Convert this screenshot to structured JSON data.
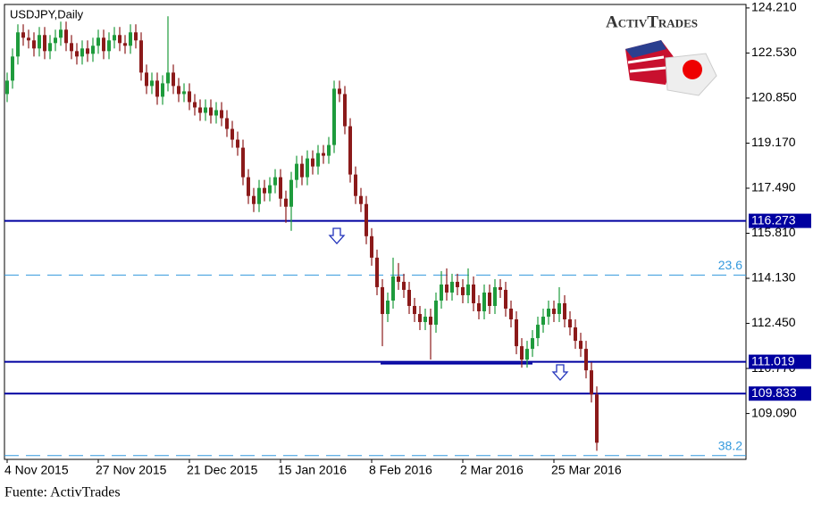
{
  "chart_data": {
    "type": "candlestick",
    "title": "USDJPY,Daily",
    "logo": "ActivTrades",
    "source": "Fuente: ActivTrades",
    "categories": [
      "4 Nov 2015",
      null,
      null,
      null,
      null,
      null,
      null,
      null,
      null,
      null,
      null,
      null,
      null,
      null,
      null,
      null,
      null,
      "27 Nov 2015",
      null,
      null,
      null,
      null,
      null,
      null,
      null,
      null,
      null,
      null,
      null,
      null,
      null,
      null,
      null,
      null,
      "21 Dec 2015",
      null,
      null,
      null,
      null,
      null,
      null,
      null,
      null,
      null,
      null,
      null,
      null,
      null,
      null,
      null,
      null,
      "15 Jan 2016",
      null,
      null,
      null,
      null,
      null,
      null,
      null,
      null,
      null,
      null,
      null,
      null,
      null,
      null,
      null,
      null,
      "8 Feb 2016",
      null,
      null,
      null,
      null,
      null,
      null,
      null,
      null,
      null,
      null,
      null,
      null,
      null,
      null,
      null,
      null,
      "2 Mar 2016",
      null,
      null,
      null,
      null,
      null,
      null,
      null,
      null,
      null,
      null,
      null,
      null,
      null,
      null,
      null,
      null,
      "25 Mar 2016",
      null,
      null,
      null,
      null,
      null,
      null,
      null,
      null
    ],
    "open": [
      121.0,
      121.5,
      122.4,
      123.3,
      123.1,
      123.0,
      122.7,
      123.2,
      122.6,
      122.9,
      123.1,
      123.4,
      122.9,
      122.6,
      122.4,
      122.7,
      122.5,
      122.8,
      123.1,
      122.6,
      123.0,
      123.2,
      122.9,
      122.8,
      123.3,
      123.0,
      121.8,
      121.3,
      121.5,
      120.9,
      121.4,
      121.8,
      121.3,
      121.0,
      121.1,
      120.7,
      120.5,
      120.3,
      120.5,
      120.2,
      120.4,
      120.1,
      119.7,
      119.3,
      119.0,
      117.9,
      117.2,
      116.9,
      117.5,
      117.3,
      117.6,
      117.9,
      117.1,
      116.8,
      117.8,
      118.4,
      117.9,
      118.6,
      118.3,
      118.8,
      118.7,
      119.1,
      121.2,
      121.0,
      119.8,
      118.0,
      117.2,
      116.9,
      115.7,
      114.9,
      113.8,
      112.8,
      113.3,
      114.2,
      114.0,
      113.7,
      113.1,
      112.8,
      112.5,
      112.7,
      112.4,
      113.3,
      113.9,
      113.6,
      114.0,
      113.8,
      113.5,
      113.9,
      113.2,
      112.9,
      113.6,
      113.1,
      113.8,
      113.7,
      113.0,
      112.6,
      111.6,
      111.1,
      111.5,
      111.9,
      112.4,
      112.7,
      113.0,
      112.8,
      113.2,
      112.6,
      112.3,
      111.8,
      111.5,
      110.7,
      109.8
    ],
    "high": [
      121.8,
      122.7,
      123.6,
      123.6,
      123.4,
      123.3,
      123.5,
      123.5,
      123.2,
      123.4,
      123.7,
      123.7,
      123.2,
      122.9,
      123.0,
      123.0,
      123.1,
      123.4,
      123.4,
      123.3,
      123.5,
      123.5,
      123.2,
      123.6,
      123.6,
      123.3,
      122.1,
      121.8,
      121.8,
      121.7,
      123.9,
      122.1,
      121.6,
      121.4,
      121.4,
      121.0,
      120.8,
      120.8,
      120.8,
      120.7,
      120.7,
      120.4,
      120.0,
      119.6,
      119.3,
      118.2,
      117.5,
      117.8,
      117.8,
      117.9,
      118.2,
      118.2,
      117.4,
      118.1,
      118.7,
      118.7,
      118.9,
      118.9,
      119.1,
      119.1,
      119.4,
      121.5,
      121.5,
      121.3,
      120.1,
      118.3,
      117.5,
      117.2,
      116.0,
      115.2,
      114.1,
      113.6,
      114.9,
      114.7,
      114.3,
      114.0,
      113.4,
      113.1,
      113.0,
      113.0,
      113.6,
      114.4,
      114.5,
      114.3,
      114.3,
      114.1,
      114.5,
      114.2,
      113.5,
      113.9,
      113.9,
      114.1,
      114.1,
      114.0,
      113.3,
      112.9,
      111.9,
      111.8,
      112.2,
      112.7,
      113.0,
      113.3,
      113.3,
      113.8,
      113.5,
      112.9,
      112.6,
      112.1,
      111.8,
      111.0,
      110.1
    ],
    "low": [
      120.7,
      121.2,
      122.1,
      122.8,
      122.7,
      122.4,
      122.4,
      122.3,
      122.3,
      122.6,
      122.8,
      122.6,
      122.3,
      122.1,
      122.1,
      122.2,
      122.2,
      122.5,
      122.3,
      122.3,
      122.7,
      122.6,
      122.5,
      122.5,
      122.7,
      121.5,
      121.0,
      121.0,
      120.6,
      120.6,
      121.1,
      121.0,
      120.7,
      120.7,
      120.4,
      120.2,
      120.0,
      120.0,
      119.9,
      119.9,
      119.8,
      119.4,
      119.0,
      118.7,
      117.6,
      116.9,
      116.6,
      116.6,
      117.0,
      117.0,
      117.3,
      116.8,
      116.2,
      115.9,
      117.5,
      117.6,
      117.6,
      118.0,
      118.0,
      118.4,
      118.4,
      118.8,
      120.7,
      119.5,
      117.7,
      116.9,
      116.6,
      115.4,
      114.6,
      113.5,
      111.6,
      112.5,
      113.0,
      113.7,
      113.4,
      112.8,
      112.5,
      112.2,
      112.2,
      111.1,
      112.1,
      113.0,
      113.3,
      113.3,
      113.5,
      113.2,
      113.2,
      112.9,
      112.6,
      112.6,
      112.8,
      112.8,
      113.4,
      112.7,
      112.3,
      111.3,
      110.8,
      110.8,
      111.2,
      111.6,
      112.1,
      112.4,
      112.5,
      112.5,
      112.3,
      112.0,
      111.5,
      111.2,
      110.4,
      109.5,
      107.7
    ],
    "close": [
      121.5,
      122.4,
      123.3,
      123.1,
      123.0,
      122.7,
      123.2,
      122.6,
      122.9,
      123.1,
      123.4,
      122.9,
      122.6,
      122.4,
      122.7,
      122.5,
      122.8,
      123.1,
      122.6,
      123.0,
      123.2,
      122.9,
      122.8,
      123.3,
      123.0,
      121.8,
      121.3,
      121.5,
      120.9,
      121.4,
      121.8,
      121.3,
      121.0,
      121.1,
      120.7,
      120.5,
      120.3,
      120.5,
      120.2,
      120.4,
      120.1,
      119.7,
      119.3,
      119.0,
      117.9,
      117.2,
      116.9,
      117.5,
      117.3,
      117.6,
      117.9,
      117.1,
      116.8,
      117.8,
      118.4,
      117.9,
      118.6,
      118.3,
      118.8,
      118.7,
      119.1,
      121.2,
      121.0,
      119.8,
      118.0,
      117.2,
      116.9,
      115.7,
      114.9,
      113.8,
      112.8,
      113.3,
      114.2,
      114.0,
      113.7,
      113.1,
      112.8,
      112.5,
      112.7,
      112.4,
      113.3,
      113.9,
      113.6,
      114.0,
      113.8,
      113.5,
      113.9,
      113.2,
      112.9,
      113.6,
      113.1,
      113.8,
      113.7,
      113.0,
      112.6,
      111.6,
      111.1,
      111.5,
      111.9,
      112.4,
      112.7,
      113.0,
      112.8,
      113.2,
      112.6,
      112.3,
      111.8,
      111.5,
      110.7,
      109.8,
      108.0
    ],
    "up_color": "#1e9b3c",
    "down_color": "#8b1a1a",
    "ylim": [
      107.38,
      124.34
    ],
    "yticks": [
      {
        "value": 124.21,
        "label": "124.210"
      },
      {
        "value": 122.53,
        "label": "122.530"
      },
      {
        "value": 120.85,
        "label": "120.850"
      },
      {
        "value": 119.17,
        "label": "119.170"
      },
      {
        "value": 117.49,
        "label": "117.490"
      },
      {
        "value": 115.81,
        "label": "115.810"
      },
      {
        "value": 114.13,
        "label": "114.130"
      },
      {
        "value": 112.45,
        "label": "112.450"
      },
      {
        "value": 110.77,
        "label": "110.770"
      },
      {
        "value": 109.09,
        "label": "109.090"
      }
    ],
    "levels": [
      116.273,
      111.019,
      109.833
    ],
    "level_color": "#0000a0",
    "fib_levels": [
      {
        "value": 114.25,
        "label": "23.6"
      },
      {
        "value": 107.52,
        "label": "38.2"
      }
    ],
    "fib_color": "#3399dd",
    "support_line": 110.95
  }
}
